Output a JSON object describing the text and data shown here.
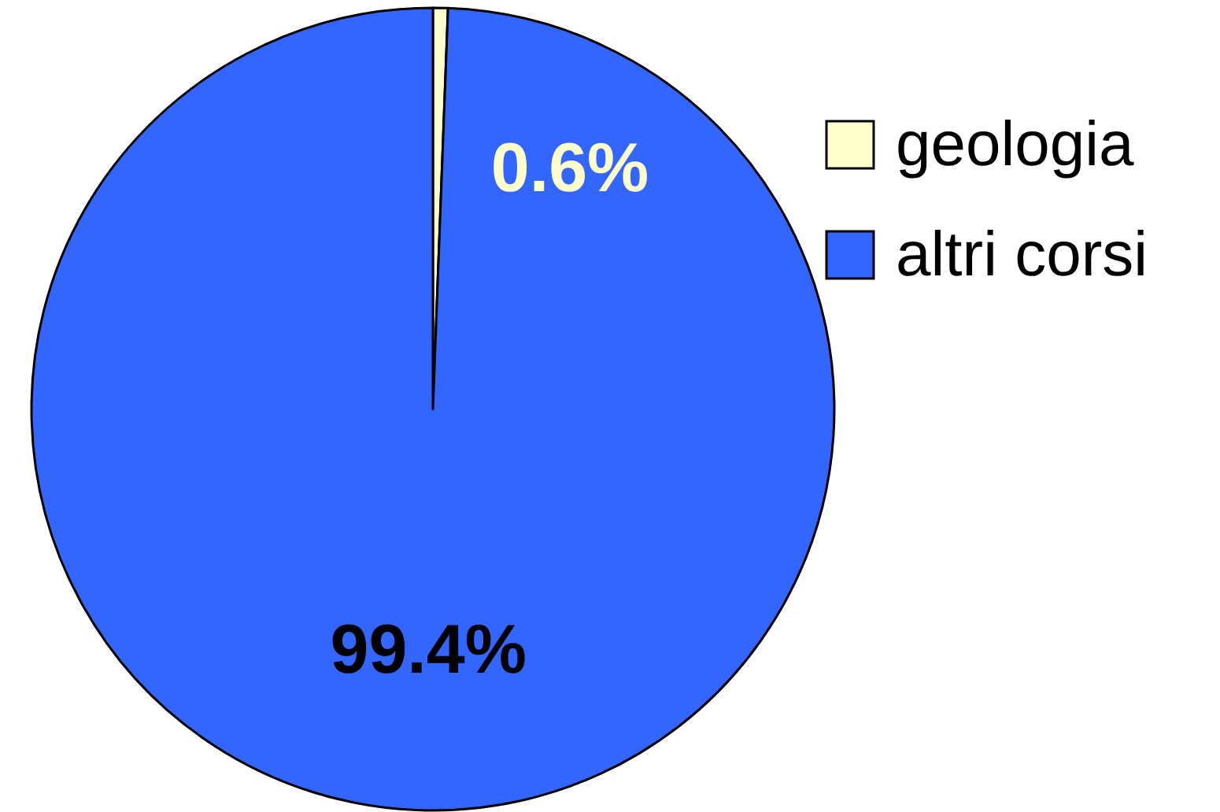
{
  "chart_data": {
    "type": "pie",
    "categories": [
      "geologia",
      "altri corsi"
    ],
    "values": [
      0.6,
      99.4
    ],
    "colors": [
      "#ffffcc",
      "#3366ff"
    ],
    "value_labels": [
      "0.6%",
      "99.4%"
    ],
    "legend": "right"
  }
}
